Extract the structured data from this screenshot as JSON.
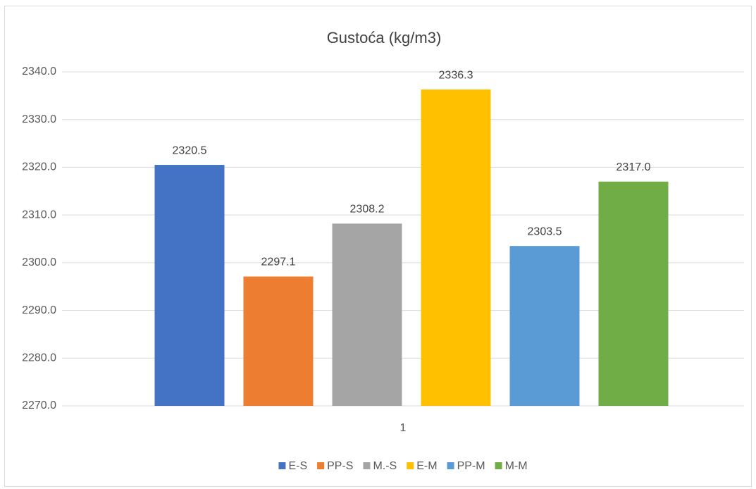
{
  "chart_data": {
    "type": "bar",
    "title": "Gustoća (kg/m3)",
    "categories": [
      "1"
    ],
    "series": [
      {
        "name": "E-S",
        "color": "#4472c4",
        "values": [
          2320.5
        ]
      },
      {
        "name": "PP-S",
        "color": "#ed7d31",
        "values": [
          2297.1
        ]
      },
      {
        "name": "M.-S",
        "color": "#a5a5a5",
        "values": [
          2308.2
        ]
      },
      {
        "name": "E-M",
        "color": "#ffc000",
        "values": [
          2336.3
        ]
      },
      {
        "name": "PP-M",
        "color": "#5b9bd5",
        "values": [
          2303.5
        ]
      },
      {
        "name": "M-M",
        "color": "#70ad47",
        "values": [
          2317
        ],
        "value_labels": [
          "2317.0"
        ]
      }
    ],
    "ylim": [
      2270,
      2340
    ],
    "yticks": [
      {
        "value": 2270,
        "label": "2270.0"
      },
      {
        "value": 2280,
        "label": "2280.0"
      },
      {
        "value": 2290,
        "label": "2290.0"
      },
      {
        "value": 2300,
        "label": "2300.0"
      },
      {
        "value": 2310,
        "label": "2310.0"
      },
      {
        "value": 2320,
        "label": "2320.0"
      },
      {
        "value": 2330,
        "label": "2330.0"
      },
      {
        "value": 2340,
        "label": "2340.0"
      }
    ],
    "grid": true,
    "legend": "bottom"
  }
}
